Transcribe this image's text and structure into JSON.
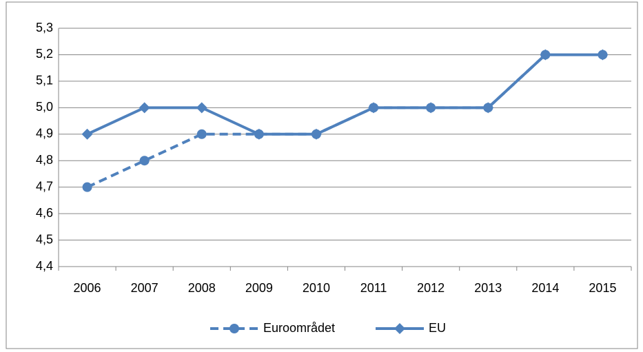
{
  "chart_data": {
    "type": "line",
    "categories": [
      "2006",
      "2007",
      "2008",
      "2009",
      "2010",
      "2011",
      "2012",
      "2013",
      "2014",
      "2015"
    ],
    "series": [
      {
        "name": "Euroområdet",
        "color": "#4f81bd",
        "values": [
          4.7,
          4.8,
          4.9,
          4.9,
          4.9,
          5.0,
          5.0,
          5.0,
          5.2,
          5.2
        ]
      },
      {
        "name": "EU",
        "color": "#4f81bd",
        "values": [
          4.9,
          5.0,
          5.0,
          4.9,
          4.9,
          5.0,
          5.0,
          5.0,
          5.2,
          5.2
        ]
      }
    ],
    "ylim": [
      4.4,
      5.3
    ],
    "yticks": [
      {
        "value": 4.4,
        "label": "4,4"
      },
      {
        "value": 4.5,
        "label": "4,5"
      },
      {
        "value": 4.6,
        "label": "4,6"
      },
      {
        "value": 4.7,
        "label": "4,7"
      },
      {
        "value": 4.8,
        "label": "4,8"
      },
      {
        "value": 4.9,
        "label": "4,9"
      },
      {
        "value": 5.0,
        "label": "5,0"
      },
      {
        "value": 5.1,
        "label": "5,1"
      },
      {
        "value": 5.2,
        "label": "5,2"
      },
      {
        "value": 5.3,
        "label": "5,3"
      }
    ],
    "grid": true,
    "legend": "bottom"
  }
}
